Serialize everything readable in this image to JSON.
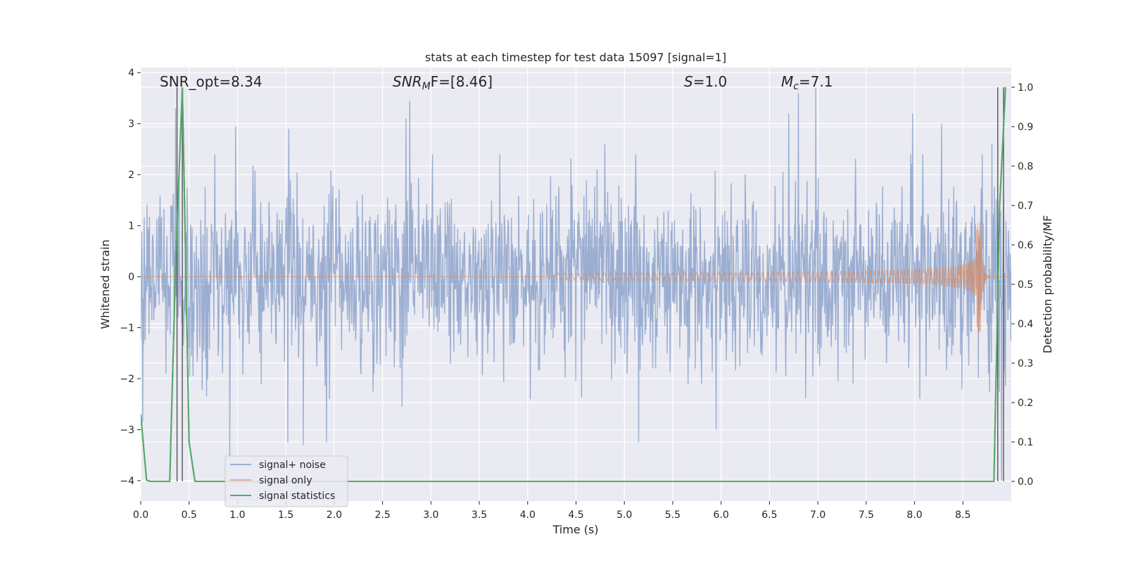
{
  "chart_data": {
    "type": "line",
    "title": "stats at each timestep for test data 15097 [signal=1]",
    "xlabel": "Time (s)",
    "ylabel": "Whitened strain",
    "y2label": "Detection probability/MF",
    "xlim": [
      0,
      9.0
    ],
    "ylim": [
      -4.4,
      4.1
    ],
    "y2lim": [
      -0.05,
      1.05
    ],
    "xticks": [
      0.0,
      0.5,
      1.0,
      1.5,
      2.0,
      2.5,
      3.0,
      3.5,
      4.0,
      4.5,
      5.0,
      5.5,
      6.0,
      6.5,
      7.0,
      7.5,
      8.0,
      8.5
    ],
    "yticks": [
      -4,
      -3,
      -2,
      -1,
      0,
      1,
      2,
      3,
      4
    ],
    "y2ticks": [
      0.0,
      0.1,
      0.2,
      0.3,
      0.4,
      0.5,
      0.6,
      0.7,
      0.8,
      0.9,
      1.0
    ],
    "grid": true,
    "legend_position": "lower-left",
    "annotations": {
      "snr_opt": "SNR_opt=8.34",
      "snr_mf_main": "SNR",
      "snr_mf_sub": "M",
      "snr_mf_tail": "F=[8.46]",
      "s_main": "S",
      "s_tail": "=1.0",
      "mc_main": "M",
      "mc_sub": "c",
      "mc_tail": "=7.1"
    },
    "series": [
      {
        "name": "signal+ noise",
        "color": "#4c72b0",
        "kind": "noise",
        "sigma": 0.85,
        "peaks": [
          {
            "x": 0.36,
            "y": 3.3
          },
          {
            "x": 0.98,
            "y": 2.95
          },
          {
            "x": 1.53,
            "y": 2.9
          },
          {
            "x": 2.78,
            "y": 3.45
          },
          {
            "x": 2.74,
            "y": 3.1
          },
          {
            "x": 4.8,
            "y": 2.6
          },
          {
            "x": 6.7,
            "y": 3.2
          },
          {
            "x": 6.8,
            "y": 3.6
          },
          {
            "x": 6.98,
            "y": 3.7
          },
          {
            "x": 7.98,
            "y": 3.2
          },
          {
            "x": 8.28,
            "y": 3.0
          },
          {
            "x": 8.8,
            "y": 2.6
          },
          {
            "x": 0.92,
            "y": -3.6
          },
          {
            "x": 1.52,
            "y": -3.25
          },
          {
            "x": 1.68,
            "y": -3.3
          },
          {
            "x": 1.92,
            "y": -3.25
          },
          {
            "x": 5.15,
            "y": -3.25
          },
          {
            "x": 5.95,
            "y": -3.0
          },
          {
            "x": 8.9,
            "y": -4.0
          },
          {
            "x": 0.02,
            "y": -2.85
          },
          {
            "x": 2.7,
            "y": -2.55
          }
        ]
      },
      {
        "name": "signal only",
        "color": "#dd8452",
        "kind": "chirp",
        "start": 4.3,
        "merger": 8.68,
        "peak_amplitude": 1.1
      },
      {
        "name": "signal statistics",
        "color": "#55a868",
        "kind": "line",
        "axis": "right",
        "x": [
          0.0,
          0.06,
          0.1,
          0.3,
          0.36,
          0.43,
          0.5,
          0.56,
          8.82,
          8.88,
          8.94
        ],
        "y": [
          0.17,
          0.003,
          0.0,
          0.0,
          0.55,
          1.0,
          0.1,
          0.0,
          0.0,
          0.7,
          1.0
        ]
      }
    ],
    "vlines": [
      0.375,
      0.43,
      8.86,
      8.92
    ]
  }
}
